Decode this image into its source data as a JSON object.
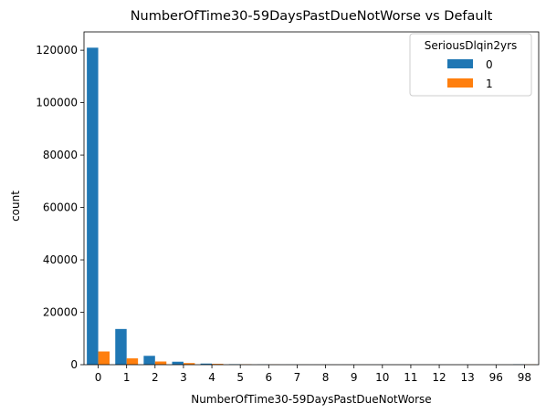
{
  "chart_data": {
    "type": "bar",
    "title": "NumberOfTime30-59DaysPastDueNotWorse vs Default",
    "xlabel": "NumberOfTime30-59DaysPastDueNotWorse",
    "ylabel": "count",
    "categories": [
      "0",
      "1",
      "2",
      "3",
      "4",
      "5",
      "6",
      "7",
      "8",
      "9",
      "10",
      "11",
      "12",
      "13",
      "96",
      "98"
    ],
    "series": [
      {
        "name": "0",
        "color": "#1f77b4",
        "values": [
          120977,
          13624,
          3379,
          1136,
          429,
          188,
          66,
          26,
          15,
          10,
          3,
          1,
          1,
          0,
          1,
          151
        ]
      },
      {
        "name": "1",
        "color": "#ff7f0e",
        "values": [
          5041,
          2409,
          1219,
          618,
          318,
          154,
          74,
          28,
          10,
          2,
          1,
          0,
          1,
          1,
          4,
          113
        ]
      }
    ],
    "ylim": [
      0,
      127000
    ],
    "yticks": [
      "0",
      "20000",
      "40000",
      "60000",
      "80000",
      "100000",
      "120000"
    ],
    "legend": {
      "title": "SeriousDlqin2yrs",
      "position": "top-right"
    },
    "grid": false
  }
}
